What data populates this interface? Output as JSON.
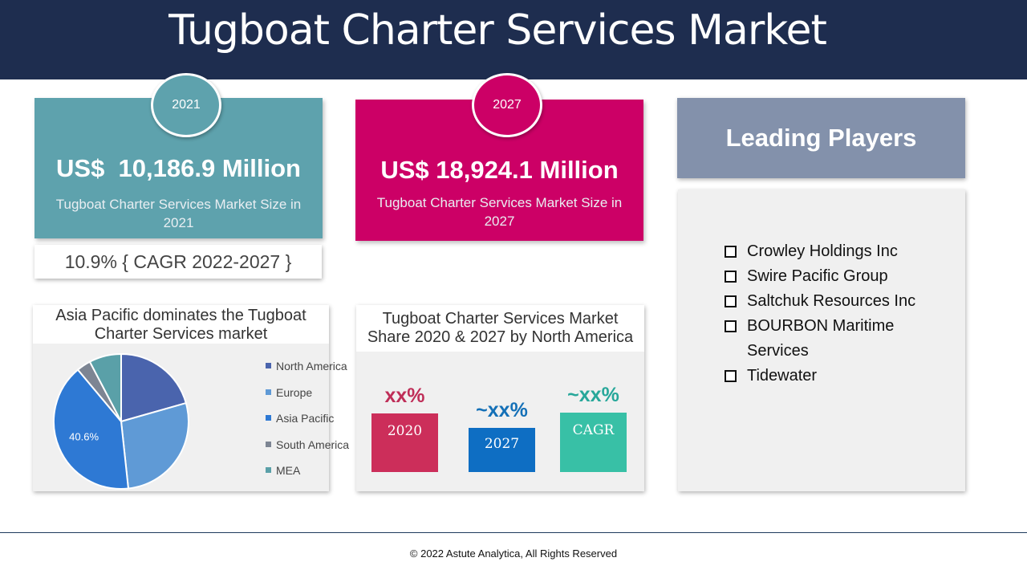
{
  "header": {
    "title": "Tugboat Charter Services Market"
  },
  "card_2021": {
    "year": "2021",
    "value": "US$  10,186.9 Million",
    "caption": "Tugboat Charter Services Market Size in 2021",
    "color": "#5ea2ad"
  },
  "card_2027": {
    "year": "2027",
    "value": "US$ 18,924.1 Million",
    "caption": "Tugboat Charter Services Market Size in 2027",
    "color": "#cc0066"
  },
  "cagr": {
    "text": "10.9% { CAGR 2022-2027 }"
  },
  "chart_data": [
    {
      "type": "pie",
      "title": "Asia Pacific dominates the Tugboat Charter Services market",
      "categories": [
        "North America",
        "Europe",
        "Asia Pacific",
        "South America",
        "MEA"
      ],
      "values": [
        20.6,
        27.7,
        40.6,
        3.4,
        7.7
      ],
      "colors": [
        "#4a64ad",
        "#5f9ad6",
        "#2e79d4",
        "#7d8593",
        "#5aa0a8"
      ],
      "data_labels": [
        "",
        "",
        "40.6%",
        "",
        ""
      ],
      "legend_position": "right"
    },
    {
      "type": "bar",
      "title": "Tugboat Charter Services Market Share 2020 & 2027 by North America",
      "categories": [
        "2020",
        "2027",
        "CAGR"
      ],
      "top_labels": [
        "xx%",
        "~xx%",
        "~xx%"
      ],
      "values": [
        73,
        55,
        74
      ],
      "colors": [
        "#cc2e5a",
        "#0e6ec3",
        "#38c0a6"
      ],
      "label_colors": [
        "#bf2e58",
        "#1470b7",
        "#27a79a"
      ]
    }
  ],
  "leading_players": {
    "title": "Leading Players",
    "items": [
      "Crowley Holdings Inc",
      "Swire Pacific Group",
      "Saltchuk Resources Inc",
      "BOURBON Maritime Services",
      "Tidewater"
    ]
  },
  "footer": {
    "text": "© 2022 Astute Analytica, All Rights Reserved"
  }
}
